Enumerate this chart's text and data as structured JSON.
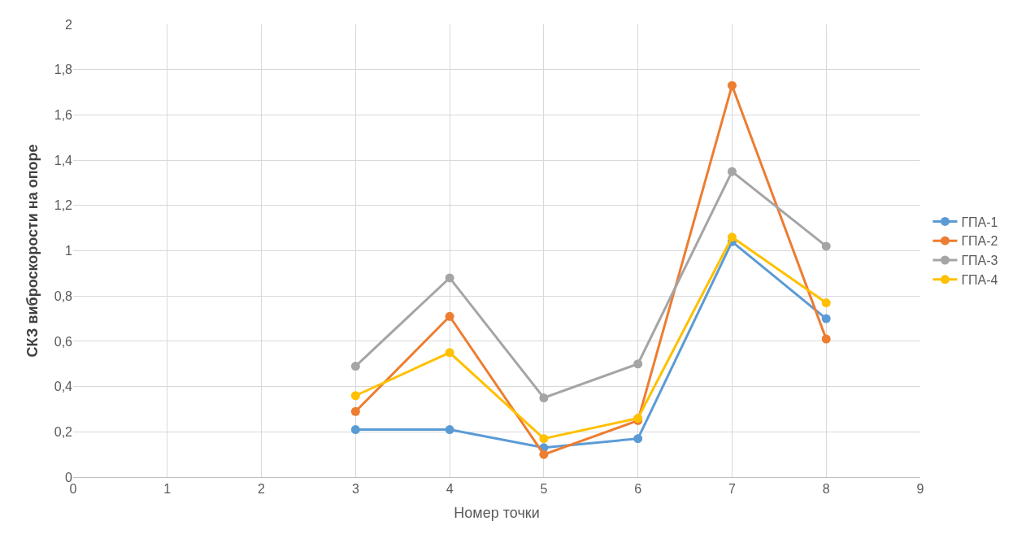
{
  "chart_data": {
    "type": "line",
    "xlabel": "Номер точки",
    "ylabel": "СКЗ виброскорости на опоре",
    "x": [
      3,
      4,
      5,
      6,
      7,
      8
    ],
    "series": [
      {
        "name": "ГПА-1",
        "color": "#5b9bd5",
        "values": [
          0.21,
          0.21,
          0.13,
          0.17,
          1.04,
          0.7
        ]
      },
      {
        "name": "ГПА-2",
        "color": "#ed7d31",
        "values": [
          0.29,
          0.71,
          0.1,
          0.25,
          1.73,
          0.61
        ]
      },
      {
        "name": "ГПА-3",
        "color": "#a5a5a5",
        "values": [
          0.49,
          0.88,
          0.35,
          0.5,
          1.35,
          1.02
        ]
      },
      {
        "name": "ГПА-4",
        "color": "#ffc000",
        "values": [
          0.36,
          0.55,
          0.17,
          0.26,
          1.06,
          0.77
        ]
      }
    ],
    "xlim": [
      0,
      9
    ],
    "xticks": [
      0,
      1,
      2,
      3,
      4,
      5,
      6,
      7,
      8,
      9
    ],
    "ylim": [
      0,
      2
    ],
    "yticks": [
      0,
      {
        "value": 0.2,
        "label": "0,2"
      },
      {
        "value": 0.4,
        "label": "0,4"
      },
      {
        "value": 0.6,
        "label": "0,6"
      },
      {
        "value": 0.8,
        "label": "0,8"
      },
      1,
      {
        "value": 1.2,
        "label": "1,2"
      },
      {
        "value": 1.4,
        "label": "1,4"
      },
      {
        "value": 1.6,
        "label": "1,6"
      },
      {
        "value": 1.8,
        "label": "1,8"
      },
      2
    ],
    "grid": true,
    "legend": "right",
    "marker": "circle",
    "line_style": "solid"
  }
}
